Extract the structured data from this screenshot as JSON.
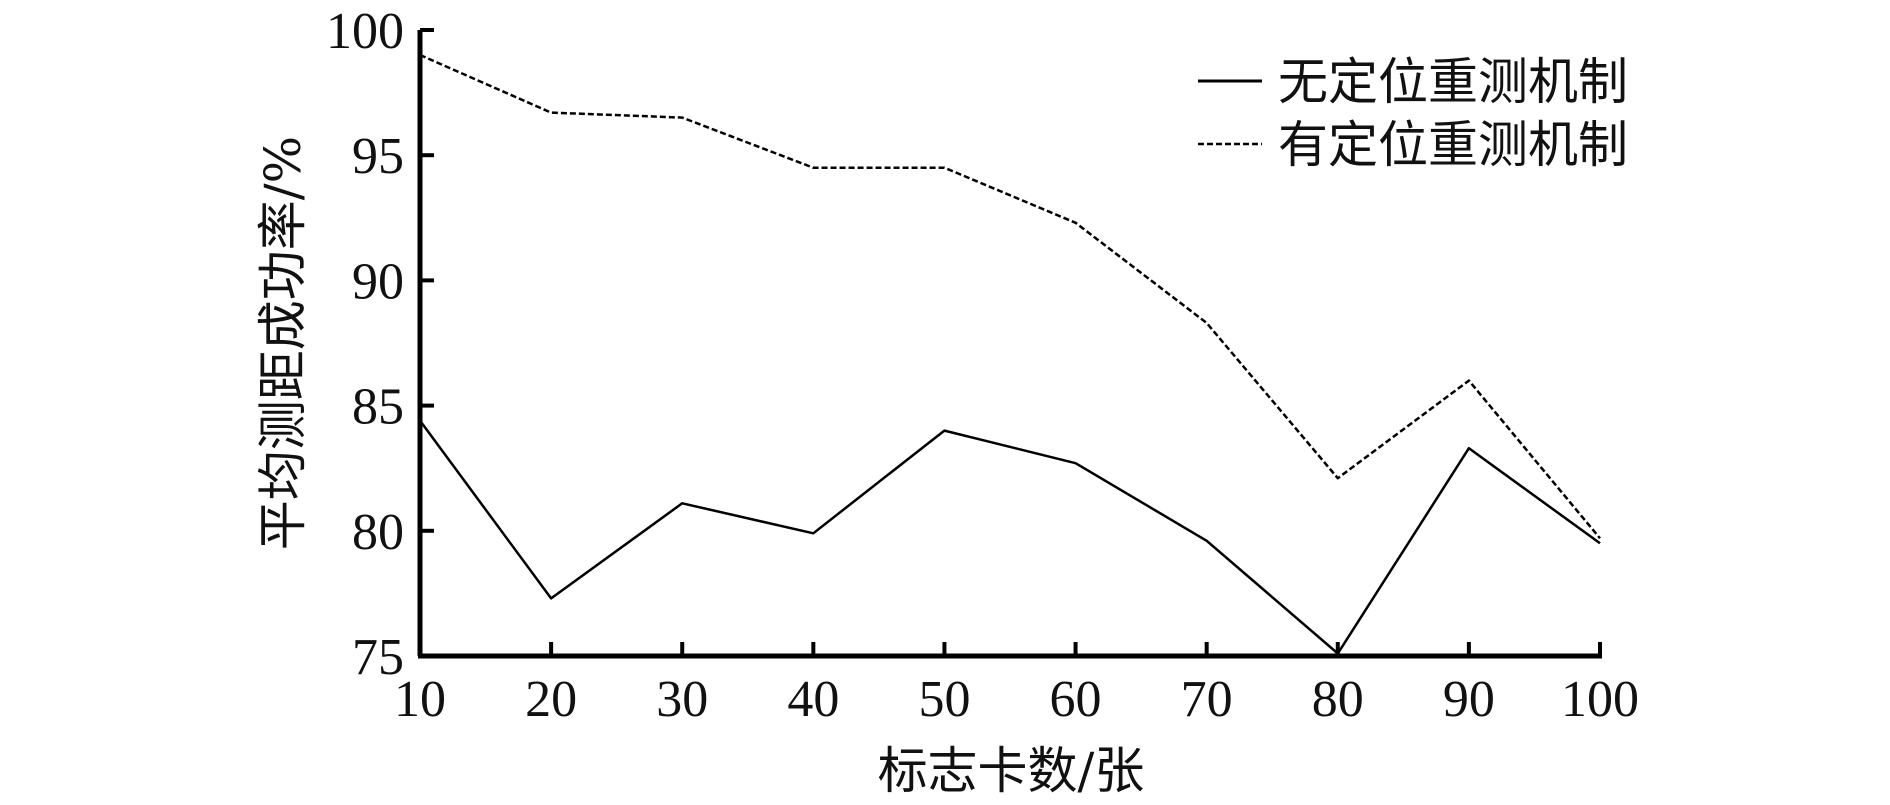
{
  "chart_data": {
    "type": "line",
    "xlabel": "标志卡数/张",
    "ylabel": "平均测距成功率/%",
    "x": [
      10,
      20,
      30,
      40,
      50,
      60,
      70,
      80,
      90,
      100
    ],
    "x_tick_labels": [
      "10",
      "20",
      "30",
      "40",
      "50",
      "60",
      "70",
      "80",
      "90",
      "100"
    ],
    "y_tick_labels": [
      "75",
      "80",
      "85",
      "90",
      "95",
      "100"
    ],
    "xlim": [
      10,
      100
    ],
    "ylim": [
      75,
      100
    ],
    "grid": false,
    "legend_position": "top-right",
    "series": [
      {
        "name": "无定位重测机制",
        "line_style": "solid",
        "values": [
          84.4,
          77.3,
          81.1,
          79.9,
          84.0,
          82.7,
          79.6,
          75.1,
          83.3,
          79.5
        ]
      },
      {
        "name": "有定位重测机制",
        "line_style": "dashed",
        "values": [
          99.0,
          96.7,
          96.5,
          94.5,
          94.5,
          92.3,
          88.3,
          82.1,
          86.0,
          79.7
        ]
      }
    ]
  }
}
